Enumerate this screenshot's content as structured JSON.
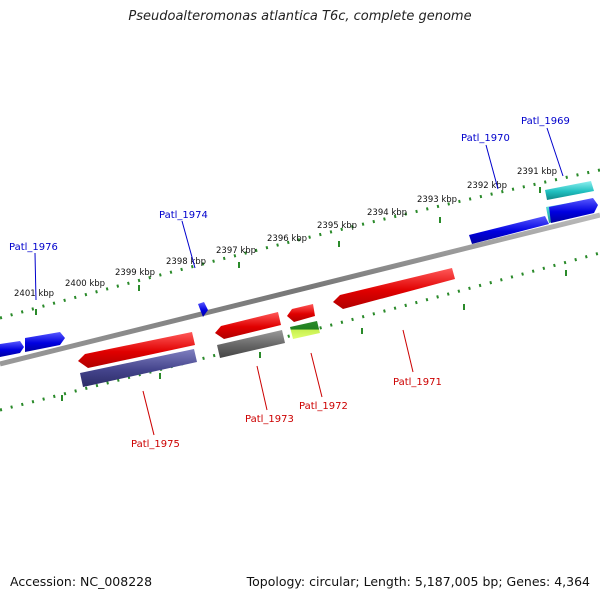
{
  "title": "Pseudoalteromonas atlantica T6c, complete genome",
  "footer": {
    "accession": "Accession: NC_008228",
    "summary": "Topology: circular; Length: 5,187,005 bp; Genes: 4,364"
  },
  "scale_labels": [
    "2391 kbp",
    "2392 kbp",
    "2393 kbp",
    "2394 kbp",
    "2395 kbp",
    "2396 kbp",
    "2397 kbp",
    "2398 kbp",
    "2399 kbp",
    "2400 kbp",
    "2401 kbp"
  ],
  "gene_labels_top": [
    "Patl_1969",
    "Patl_1970",
    "Patl_1974",
    "Patl_1976"
  ],
  "gene_labels_bottom": [
    "Patl_1971",
    "Patl_1972",
    "Patl_1973",
    "Patl_1975"
  ],
  "colors": {
    "forward": "#0000ee",
    "reverse": "#ee0000",
    "cyan": "#20c8c8",
    "dark_gray": "#666666",
    "green": "#2a8a2a",
    "lime": "#c8f050",
    "purple": "#4a4a90",
    "backbone": "#888888",
    "ticks": "#2a8a2a",
    "label_top": "#0000cc",
    "label_bottom": "#cc0000"
  }
}
